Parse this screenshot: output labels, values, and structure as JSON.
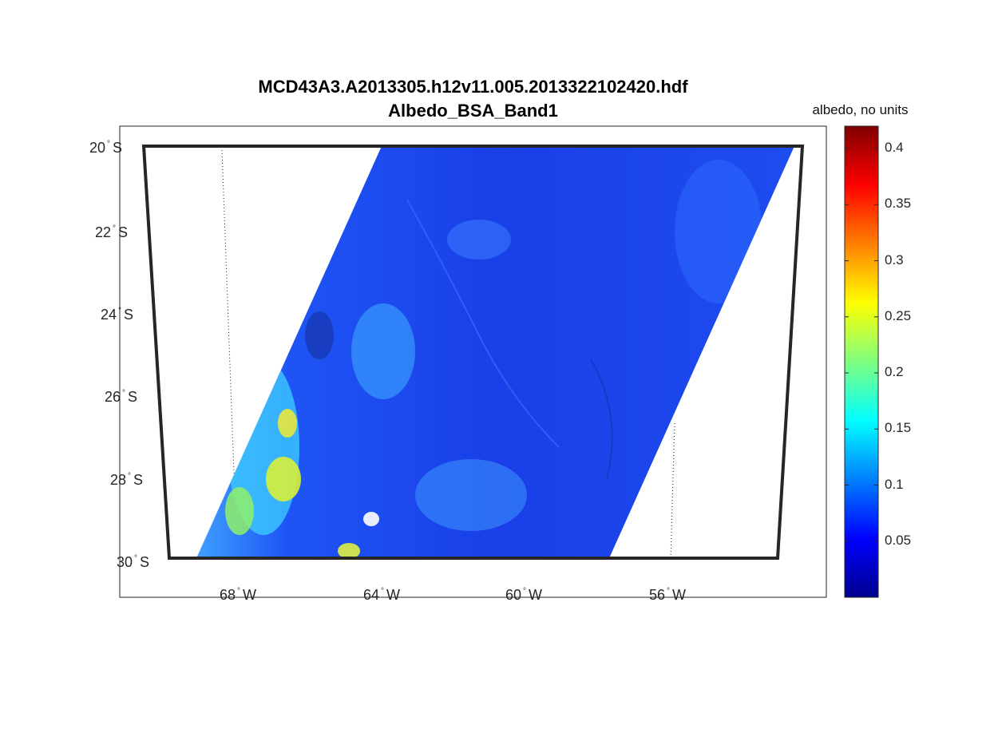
{
  "map": {
    "title_line1": "MCD43A3.A2013305.h12v11.005.2013322102420.hdf",
    "title_line2": "Albedo_BSA_Band1",
    "lat_labels": [
      {
        "deg": "20",
        "hemi": "S",
        "value": -20
      },
      {
        "deg": "22",
        "hemi": "S",
        "value": -22
      },
      {
        "deg": "24",
        "hemi": "S",
        "value": -24
      },
      {
        "deg": "26",
        "hemi": "S",
        "value": -26
      },
      {
        "deg": "28",
        "hemi": "S",
        "value": -28
      },
      {
        "deg": "30",
        "hemi": "S",
        "value": -30
      }
    ],
    "lon_labels": [
      {
        "deg": "68",
        "hemi": "W",
        "value": -68
      },
      {
        "deg": "64",
        "hemi": "W",
        "value": -64
      },
      {
        "deg": "60",
        "hemi": "W",
        "value": -60
      },
      {
        "deg": "56",
        "hemi": "W",
        "value": -56
      }
    ],
    "frame_color": "#262626",
    "data_color_low": "#1e3cf0",
    "data_color_high": "#ffff33"
  },
  "colorbar": {
    "title": "albedo, no units",
    "ticks": [
      "0.05",
      "0.1",
      "0.15",
      "0.2",
      "0.25",
      "0.3",
      "0.35",
      "0.4"
    ],
    "tick_values": [
      0.05,
      0.1,
      0.15,
      0.2,
      0.25,
      0.3,
      0.35,
      0.4
    ],
    "range": [
      0,
      0.42
    ],
    "colormap": "jet"
  }
}
